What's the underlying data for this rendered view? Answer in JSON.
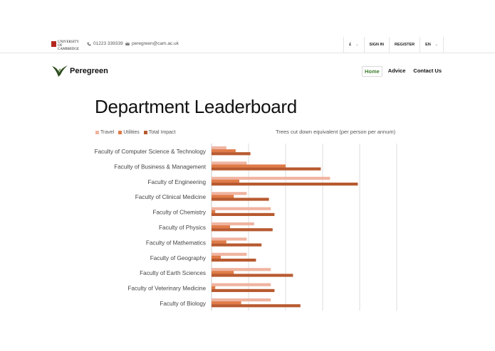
{
  "topbar": {
    "university_line1": "UNIVERSITY OF",
    "university_line2": "CAMBRIDGE",
    "phone": "01223 339339",
    "email": "peregreen@cam.ac.uk",
    "currency": "£",
    "sign_in": "SIGN IN",
    "register": "REGISTER",
    "language": "EN"
  },
  "brand": {
    "name": "Peregreen"
  },
  "nav": {
    "home": "Home",
    "advice": "Advice",
    "contact": "Contact Us"
  },
  "page": {
    "title": "Department Leaderboard"
  },
  "colors": {
    "travel": "#f0b4a0",
    "utilities": "#e07b48",
    "total": "#b85a30",
    "nav_active": "#3e7f2c"
  },
  "chart_data": {
    "type": "bar",
    "orientation": "horizontal",
    "title": "Trees cut down equivalent (per person per annum)",
    "categories": [
      "Faculty of Computer Science & Technology",
      "Faculty of Business & Management",
      "Faculty of Engineering",
      "Faculty of Clinical Medicine",
      "Faculty of Chemistry",
      "Faculty of Physics",
      "Faculty of Mathematics",
      "Faculty of Geography",
      "Faculty of Earth Sciences",
      "Faculty of Veterinary Medicine",
      "Faculty of Biology"
    ],
    "series": [
      {
        "name": "Travel",
        "color": "#f0b4a0",
        "values": [
          0.4,
          0.95,
          3.2,
          0.95,
          1.6,
          1.15,
          0.95,
          0.95,
          1.6,
          1.6,
          1.6
        ]
      },
      {
        "name": "Utilities",
        "color": "#e07b48",
        "values": [
          0.65,
          2.0,
          0.75,
          0.6,
          0.1,
          0.5,
          0.4,
          0.25,
          0.6,
          0.1,
          0.8
        ]
      },
      {
        "name": "Total Impact",
        "color": "#b85a30",
        "values": [
          1.05,
          2.95,
          3.95,
          1.55,
          1.7,
          1.65,
          1.35,
          1.2,
          2.2,
          1.7,
          2.4
        ]
      }
    ],
    "xlim": [
      0,
      5
    ],
    "gridlines": [
      1,
      2,
      3,
      4,
      5
    ],
    "legend": "top-left"
  }
}
